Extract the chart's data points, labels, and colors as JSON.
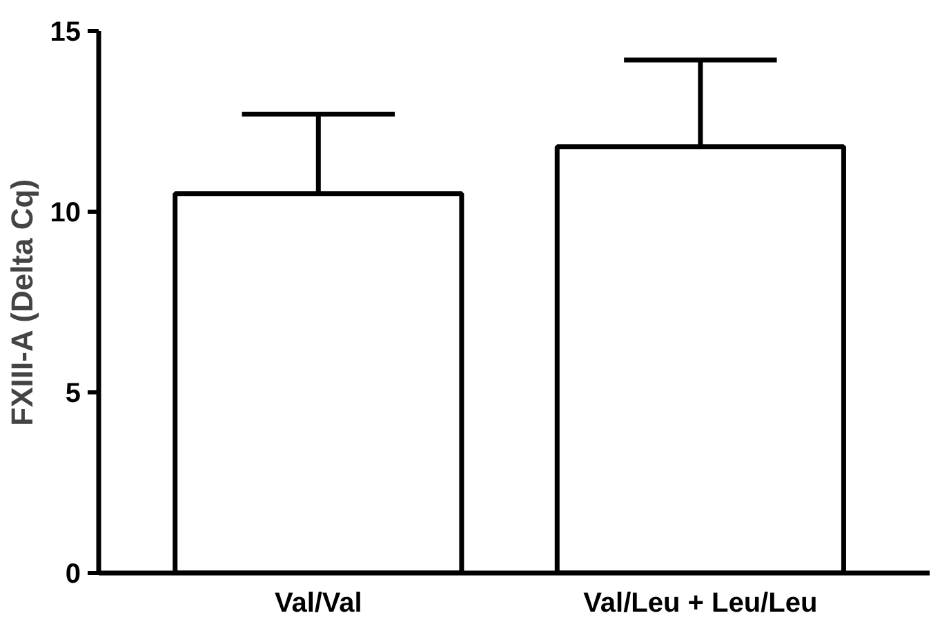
{
  "chart_data": {
    "type": "bar",
    "ylabel": "FXIII-A (Delta Cq)",
    "categories": [
      "Val/Val",
      "Val/Leu + Leu/Leu"
    ],
    "values": [
      10.5,
      11.8
    ],
    "errors": [
      [
        10.5,
        12.7
      ],
      [
        11.8,
        14.2
      ]
    ],
    "color": "#ffffff",
    "ylim": [
      0,
      15
    ],
    "yticks": [
      0,
      5,
      10,
      15
    ],
    "grid": false
  }
}
